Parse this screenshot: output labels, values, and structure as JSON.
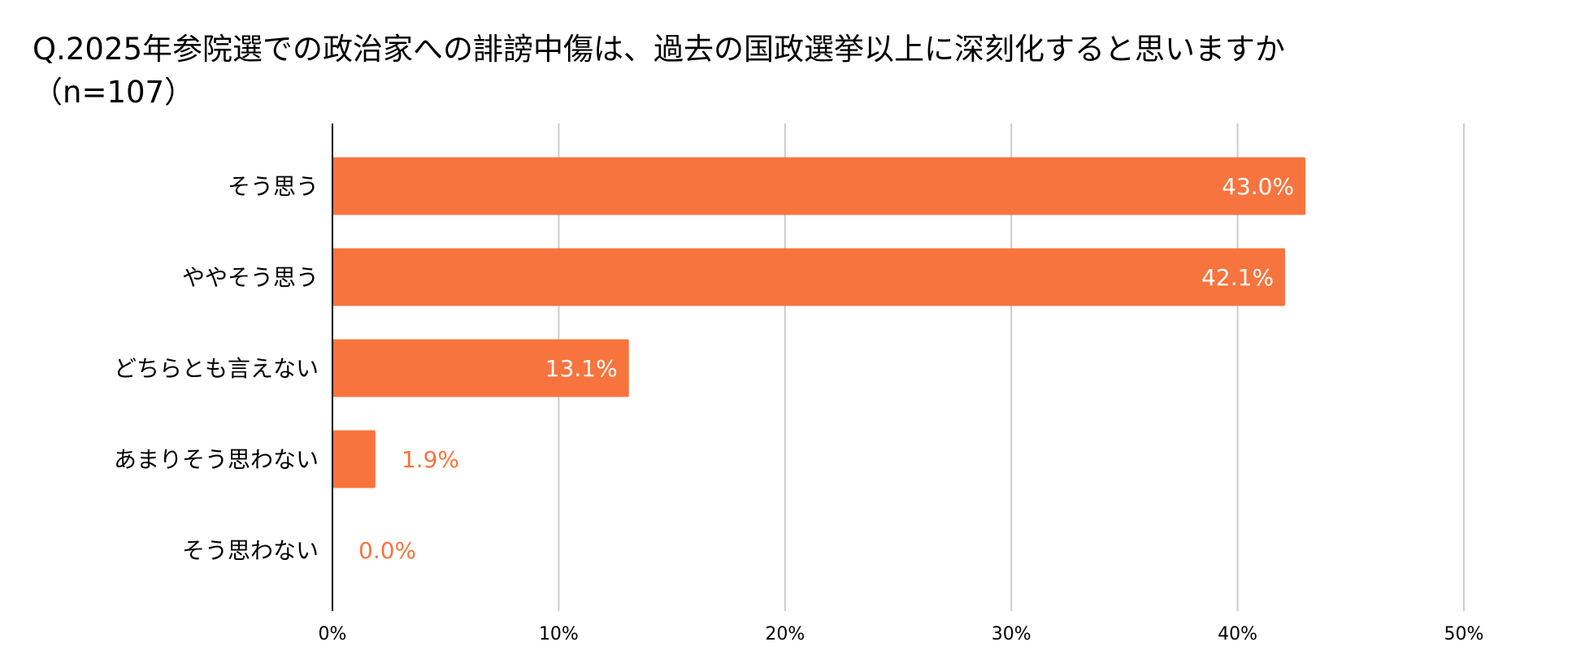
{
  "chart_data": {
    "type": "bar",
    "orientation": "horizontal",
    "title": "Q.2025年参院選での政治家への誹謗中傷は、過去の国政選挙以上に深刻化すると思いますか\n（n=107）",
    "categories": [
      "そう思う",
      "ややそう思う",
      "どちらとも言えない",
      "あまりそう思わない",
      "そう思わない"
    ],
    "values": [
      43.0,
      42.1,
      13.1,
      1.9,
      0.0
    ],
    "data_labels": [
      "43.0%",
      "42.1%",
      "13.1%",
      "1.9%",
      "0.0%"
    ],
    "x_ticks": [
      0,
      10,
      20,
      30,
      40,
      50
    ],
    "x_tick_labels": [
      "0%",
      "10%",
      "20%",
      "30%",
      "40%",
      "50%"
    ],
    "xlim": [
      0,
      50
    ],
    "grid": true,
    "legend": "none",
    "colors": {
      "bar": "#F7743E",
      "label_inside": "#FFFFFF",
      "label_outside": "#F7743E",
      "grid": "#CCCCCC",
      "axis": "#000000"
    }
  }
}
